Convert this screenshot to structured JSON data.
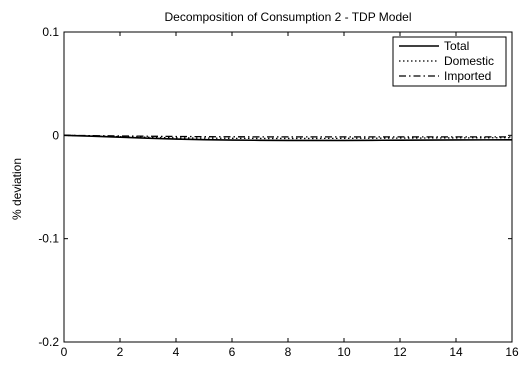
{
  "chart_data": {
    "type": "line",
    "title": "Decomposition of Consumption 2 - TDP Model",
    "xlabel": "",
    "ylabel": "% deviation",
    "xlim": [
      0,
      16
    ],
    "ylim": [
      -0.2,
      0.1
    ],
    "xticks": [
      0,
      2,
      4,
      6,
      8,
      10,
      12,
      14,
      16
    ],
    "yticks": [
      0.1,
      0,
      -0.1,
      -0.2
    ],
    "xtick_labels": [
      "0",
      "2",
      "4",
      "6",
      "8",
      "10",
      "12",
      "14",
      "16"
    ],
    "ytick_labels": [
      "0.1",
      "0",
      "-0.1",
      "-0.2"
    ],
    "grid": false,
    "legend_position": "top-right",
    "x": [
      0,
      1,
      2,
      3,
      4,
      5,
      6,
      7,
      8,
      9,
      10,
      11,
      12,
      13,
      14,
      15,
      16
    ],
    "series": [
      {
        "name": "Total",
        "style": "solid",
        "color": "#000000",
        "values": [
          0,
          -0.0008,
          -0.0018,
          -0.0028,
          -0.0036,
          -0.0042,
          -0.0046,
          -0.0048,
          -0.0049,
          -0.0049,
          -0.0049,
          -0.0048,
          -0.0047,
          -0.0046,
          -0.0045,
          -0.0044,
          -0.0043
        ]
      },
      {
        "name": "Domestic",
        "style": "dotted",
        "color": "#000000",
        "values": [
          0,
          -0.0006,
          -0.0013,
          -0.0019,
          -0.0024,
          -0.0027,
          -0.0029,
          -0.003,
          -0.003,
          -0.003,
          -0.0029,
          -0.0028,
          -0.0027,
          -0.0026,
          -0.0025,
          -0.0024,
          -0.0023
        ]
      },
      {
        "name": "Imported",
        "style": "dashdot",
        "color": "#000000",
        "values": [
          0,
          -0.0003,
          -0.0006,
          -0.0009,
          -0.0011,
          -0.0013,
          -0.0014,
          -0.0015,
          -0.0015,
          -0.0015,
          -0.0015,
          -0.0015,
          -0.0015,
          -0.0015,
          -0.0015,
          -0.0015,
          -0.0015
        ]
      }
    ]
  }
}
